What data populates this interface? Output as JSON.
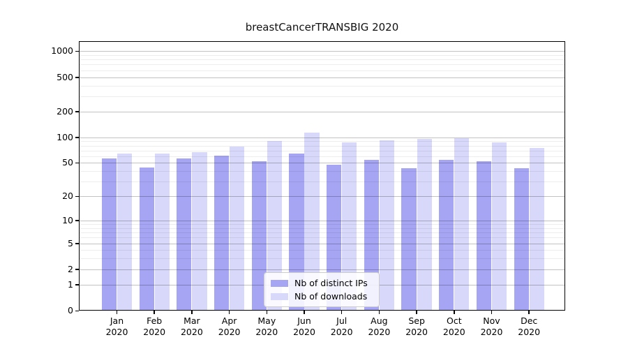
{
  "title": "breastCancerTRANSBIG 2020",
  "chart_data": {
    "type": "bar",
    "title": "breastCancerTRANSBIG 2020",
    "categories": [
      "Jan",
      "Feb",
      "Mar",
      "Apr",
      "May",
      "Jun",
      "Jul",
      "Aug",
      "Sep",
      "Oct",
      "Nov",
      "Dec"
    ],
    "x_year_label": "2020",
    "series": [
      {
        "name": "Nb of distinct IPs",
        "color": "#a5a5f3",
        "values": [
          57,
          44,
          56,
          61,
          52,
          65,
          48,
          54,
          43,
          54,
          52,
          43
        ]
      },
      {
        "name": "Nb of downloads",
        "color": "#d8d8fa",
        "values": [
          64,
          65,
          67,
          78,
          90,
          114,
          87,
          93,
          95,
          98,
          88,
          75
        ]
      }
    ],
    "xlabel": "",
    "ylabel": "",
    "y_scale": "log1p",
    "y_major_ticks": [
      1000,
      500,
      200,
      100,
      50,
      20,
      10,
      5,
      2,
      1,
      0
    ],
    "y_minor_ticks": [
      900,
      800,
      700,
      600,
      400,
      300,
      90,
      80,
      70,
      60,
      40,
      30,
      9,
      8,
      7,
      6,
      4,
      3
    ],
    "ylim": [
      0,
      1300
    ],
    "grid": true,
    "legend_position": "lower center"
  },
  "legend": {
    "items": [
      {
        "label": "Nb of distinct IPs"
      },
      {
        "label": "Nb of downloads"
      }
    ]
  },
  "colors": {
    "distinct_ips_bar": "#a5a5f3",
    "downloads_bar": "#d8d8fa",
    "axis": "#000000",
    "major_grid": "#c3c3c3",
    "minor_grid": "#ececec"
  }
}
